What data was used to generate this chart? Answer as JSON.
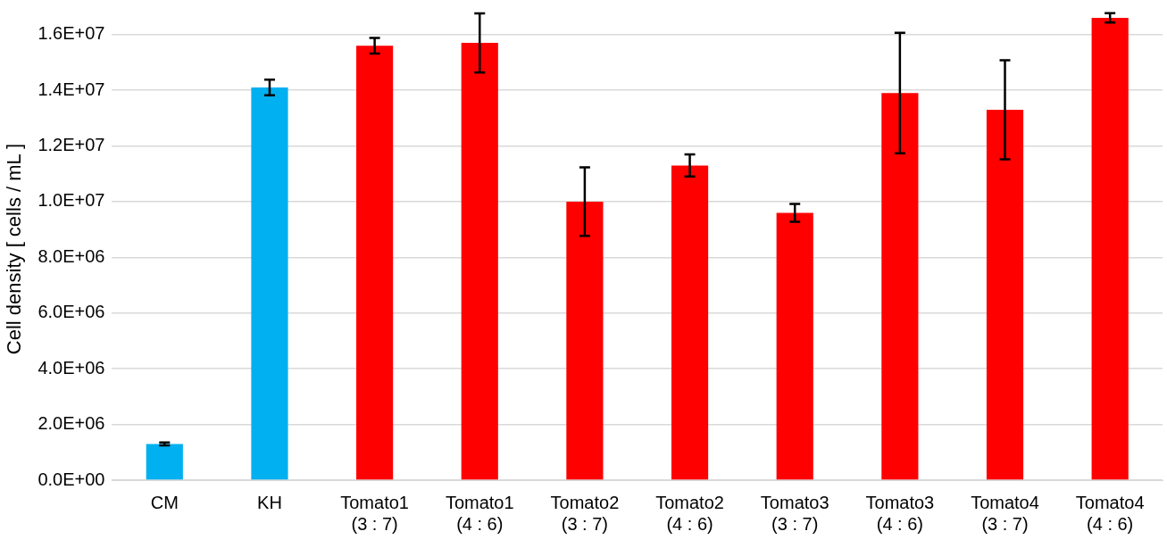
{
  "chart_data": {
    "type": "bar",
    "ylabel": "Cell density [ cells / mL ]",
    "categories": [
      "CM",
      "KH",
      "Tomato1\n(3 : 7)",
      "Tomato1\n(4 : 6)",
      "Tomato2\n(3 : 7)",
      "Tomato2\n(4 : 6)",
      "Tomato3\n(3 : 7)",
      "Tomato3\n(4 : 6)",
      "Tomato4\n(3 : 7)",
      "Tomato4\n(4 : 6)"
    ],
    "values": [
      1300000,
      14100000,
      15600000,
      15700000,
      10000000,
      11300000,
      9600000,
      13900000,
      13300000,
      16600000
    ],
    "errors": [
      50000,
      280000,
      280000,
      1060000,
      1230000,
      400000,
      320000,
      2160000,
      1780000,
      170000
    ],
    "colors": [
      "#00b0f0",
      "#00b0f0",
      "#ff0000",
      "#ff0000",
      "#ff0000",
      "#ff0000",
      "#ff0000",
      "#ff0000",
      "#ff0000",
      "#ff0000"
    ],
    "ylim": [
      0,
      16600000
    ],
    "yticks": [
      {
        "value": 0,
        "label": "0.0E+00"
      },
      {
        "value": 2000000,
        "label": "2.0E+06"
      },
      {
        "value": 4000000,
        "label": "4.0E+06"
      },
      {
        "value": 6000000,
        "label": "6.0E+06"
      },
      {
        "value": 8000000,
        "label": "8.0E+06"
      },
      {
        "value": 10000000,
        "label": "1.0E+07"
      },
      {
        "value": 12000000,
        "label": "1.2E+07"
      },
      {
        "value": 14000000,
        "label": "1.4E+07"
      },
      {
        "value": 16000000,
        "label": "1.6E+07"
      }
    ],
    "grid": "y",
    "legend": false
  }
}
